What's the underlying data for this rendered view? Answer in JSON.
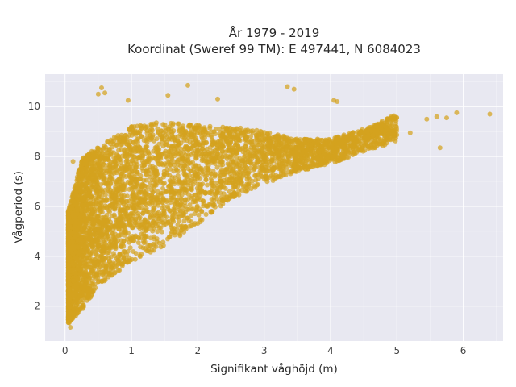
{
  "chart_data": {
    "type": "scatter",
    "title_line1": "År 1979 - 2019",
    "title_line2": "Koordinat (Sweref 99 TM): E 497441, N 6084023",
    "xlabel": "Signifikant våghöjd (m)",
    "ylabel": "Vågperiod (s)",
    "xlim": [
      -0.3,
      6.6
    ],
    "ylim": [
      0.6,
      11.3
    ],
    "x_ticks": [
      0,
      1,
      2,
      3,
      4,
      5,
      6
    ],
    "x_tick_labels": [
      "0",
      "1",
      "2",
      "3",
      "4",
      "5",
      "6"
    ],
    "y_ticks": [
      2,
      4,
      6,
      8,
      10
    ],
    "y_tick_labels": [
      "2",
      "4",
      "6",
      "8",
      "10"
    ],
    "grid": true,
    "marker_color": "#d4a21f",
    "marker_opacity": 0.72,
    "background_color": "#e8e8f1",
    "grid_color": "#ffffff",
    "density_profile": [
      {
        "x": 0.05,
        "y_low": 1.3,
        "y_high": 5.8
      },
      {
        "x": 0.25,
        "y_low": 1.8,
        "y_high": 7.9
      },
      {
        "x": 0.5,
        "y_low": 2.8,
        "y_high": 8.4
      },
      {
        "x": 1.0,
        "y_low": 3.8,
        "y_high": 9.2
      },
      {
        "x": 1.5,
        "y_low": 4.4,
        "y_high": 9.4
      },
      {
        "x": 2.0,
        "y_low": 5.3,
        "y_high": 9.3
      },
      {
        "x": 2.5,
        "y_low": 6.3,
        "y_high": 9.2
      },
      {
        "x": 3.0,
        "y_low": 6.9,
        "y_high": 9.0
      },
      {
        "x": 3.5,
        "y_low": 7.4,
        "y_high": 8.7
      },
      {
        "x": 4.0,
        "y_low": 7.7,
        "y_high": 8.7
      },
      {
        "x": 4.5,
        "y_low": 8.2,
        "y_high": 9.1
      },
      {
        "x": 5.0,
        "y_low": 8.6,
        "y_high": 9.7
      }
    ],
    "outliers": [
      {
        "x": 6.4,
        "y": 9.7
      },
      {
        "x": 5.9,
        "y": 9.75
      },
      {
        "x": 5.75,
        "y": 9.55
      },
      {
        "x": 5.6,
        "y": 9.6
      },
      {
        "x": 5.45,
        "y": 9.5
      },
      {
        "x": 5.65,
        "y": 8.35
      },
      {
        "x": 5.2,
        "y": 8.95
      },
      {
        "x": 4.85,
        "y": 9.5
      },
      {
        "x": 4.05,
        "y": 10.25
      },
      {
        "x": 4.1,
        "y": 10.2
      },
      {
        "x": 1.85,
        "y": 10.85
      },
      {
        "x": 0.55,
        "y": 10.75
      },
      {
        "x": 0.6,
        "y": 10.55
      },
      {
        "x": 0.5,
        "y": 10.5
      },
      {
        "x": 3.35,
        "y": 10.8
      },
      {
        "x": 3.45,
        "y": 10.7
      },
      {
        "x": 1.55,
        "y": 10.45
      },
      {
        "x": 0.95,
        "y": 10.25
      },
      {
        "x": 2.3,
        "y": 10.3
      },
      {
        "x": 0.05,
        "y": 5.7
      },
      {
        "x": 0.12,
        "y": 7.8
      },
      {
        "x": 0.08,
        "y": 1.15
      }
    ]
  }
}
